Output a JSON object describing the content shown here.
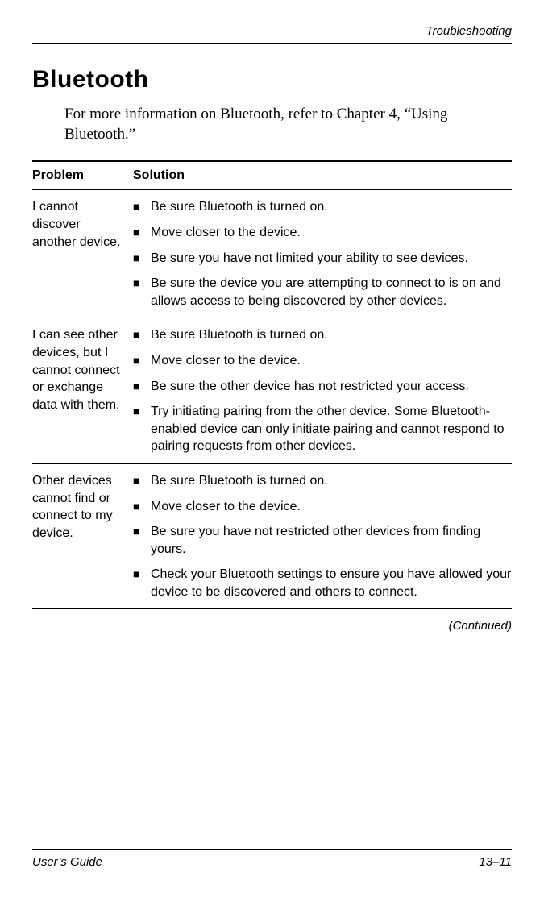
{
  "header": {
    "running_title": "Troubleshooting"
  },
  "section": {
    "title": "Bluetooth",
    "intro": "For more information on Bluetooth, refer to Chapter 4, “Using Bluetooth.”"
  },
  "table": {
    "columns": {
      "problem": "Problem",
      "solution": "Solution"
    },
    "rows": [
      {
        "problem": "I cannot discover another device.",
        "solutions": [
          "Be sure Bluetooth is turned on.",
          "Move closer to the device.",
          "Be sure you have not limited your ability to see devices.",
          "Be sure the device you are attempting to connect to is on and allows access to being discovered by other devices."
        ]
      },
      {
        "problem": "I can see other devices, but I cannot connect or exchange data with them.",
        "solutions": [
          "Be sure Bluetooth is turned on.",
          "Move closer to the device.",
          "Be sure the other device has not restricted your access.",
          "Try initiating pairing from the other device. Some Bluetooth-enabled device can only initiate pairing and cannot respond to pairing requests from other devices."
        ]
      },
      {
        "problem": "Other devices cannot find or connect to my device.",
        "solutions": [
          "Be sure Bluetooth is turned on.",
          "Move closer to the device.",
          "Be sure you have not restricted other devices from finding yours.",
          "Check your Bluetooth settings to ensure you have allowed your device to be discovered and others to connect."
        ]
      }
    ],
    "continued": "(Continued)"
  },
  "footer": {
    "left": "User’s Guide",
    "right": "13–11"
  }
}
